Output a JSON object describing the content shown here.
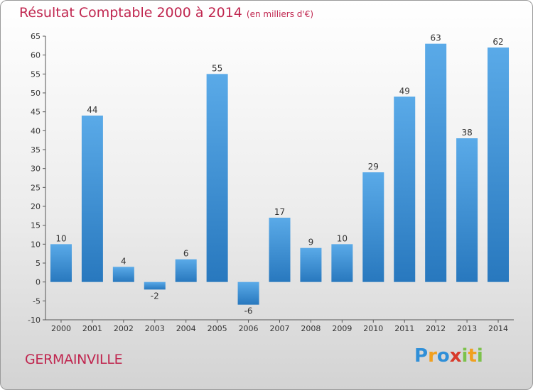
{
  "chart_data": {
    "type": "bar",
    "title": "Résultat Comptable 2000 à 2014",
    "unit": "(en milliers d'€)",
    "categories": [
      "2000",
      "2001",
      "2002",
      "2003",
      "2004",
      "2005",
      "2006",
      "2007",
      "2008",
      "2009",
      "2010",
      "2011",
      "2012",
      "2013",
      "2014"
    ],
    "values": [
      10,
      44,
      4,
      -2,
      6,
      55,
      -6,
      17,
      9,
      10,
      29,
      49,
      63,
      38,
      62
    ],
    "ylim": [
      -10,
      65
    ],
    "yticks": [
      -10,
      -5,
      0,
      5,
      10,
      15,
      20,
      25,
      30,
      35,
      40,
      45,
      50,
      55,
      60,
      65
    ],
    "xlabel": "",
    "ylabel": "",
    "grid": false
  },
  "commune": "GERMAINVILLE",
  "logo": {
    "letters": [
      "P",
      "r",
      "o",
      "x",
      "i",
      "t",
      "i"
    ],
    "colors": [
      "#2f8fd8",
      "#f0a020",
      "#2f8fd8",
      "#d83a2a",
      "#7cc24a",
      "#f0a020",
      "#7cc24a"
    ]
  },
  "colors": {
    "accent": "#c0264f",
    "bar_light": "#5aaae8",
    "bar_dark": "#2878be"
  }
}
